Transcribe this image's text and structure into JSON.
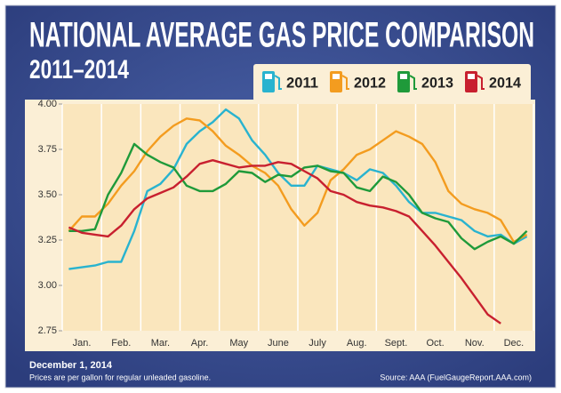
{
  "chart_data": {
    "type": "line",
    "title": "NATIONAL AVERAGE GAS PRICE COMPARISON",
    "subtitle": "2011–2014",
    "date": "December 1, 2014",
    "note": "Prices are per gallon for regular unleaded gasoline.",
    "source": "Source: AAA (FuelGaugeReport.AAA.com)",
    "legend": "top-right",
    "categories": [
      null,
      "Jan.",
      null,
      null,
      "Feb.",
      null,
      null,
      "Mar.",
      null,
      null,
      "Apr.",
      null,
      null,
      "May",
      null,
      null,
      "June",
      null,
      null,
      "July",
      null,
      null,
      "Aug.",
      null,
      null,
      "Sept.",
      null,
      null,
      "Oct.",
      null,
      null,
      "Nov.",
      null,
      null,
      "Dec.",
      null
    ],
    "ylim": [
      2.75,
      4.0
    ],
    "yticks": [
      2.75,
      {
        "value": 3.0,
        "label": "3.00"
      },
      3.25,
      {
        "value": 3.5,
        "label": "3.50"
      },
      3.75,
      {
        "value": 4.0,
        "label": "4.00"
      }
    ],
    "series": [
      {
        "name": "2011",
        "color": "#29b3cf",
        "values": [
          3.09,
          3.1,
          3.11,
          3.13,
          3.13,
          3.3,
          3.52,
          3.56,
          3.64,
          3.78,
          3.85,
          3.9,
          3.97,
          3.92,
          3.8,
          3.72,
          3.62,
          3.55,
          3.55,
          3.66,
          3.64,
          3.62,
          3.58,
          3.64,
          3.62,
          3.55,
          3.46,
          3.4,
          3.4,
          3.38,
          3.36,
          3.3,
          3.27,
          3.28,
          3.23,
          3.27
        ]
      },
      {
        "name": "2012",
        "color": "#f39c1f",
        "values": [
          3.3,
          3.38,
          3.38,
          3.45,
          3.55,
          3.63,
          3.74,
          3.82,
          3.88,
          3.92,
          3.91,
          3.85,
          3.77,
          3.72,
          3.66,
          3.62,
          3.55,
          3.42,
          3.33,
          3.4,
          3.58,
          3.64,
          3.72,
          3.75,
          3.8,
          3.85,
          3.82,
          3.78,
          3.68,
          3.52,
          3.45,
          3.42,
          3.4,
          3.36,
          3.24,
          3.28
        ]
      },
      {
        "name": "2013",
        "color": "#1f9a3a",
        "values": [
          3.3,
          3.3,
          3.31,
          3.5,
          3.62,
          3.78,
          3.72,
          3.68,
          3.65,
          3.55,
          3.52,
          3.52,
          3.56,
          3.63,
          3.62,
          3.57,
          3.61,
          3.6,
          3.65,
          3.66,
          3.63,
          3.62,
          3.54,
          3.52,
          3.6,
          3.57,
          3.5,
          3.4,
          3.37,
          3.35,
          3.26,
          3.2,
          3.24,
          3.27,
          3.23,
          3.3
        ]
      },
      {
        "name": "2014",
        "color": "#c8202f",
        "values": [
          3.32,
          3.29,
          3.28,
          3.27,
          3.33,
          3.42,
          3.48,
          3.51,
          3.54,
          3.6,
          3.67,
          3.69,
          3.67,
          3.65,
          3.66,
          3.66,
          3.68,
          3.67,
          3.63,
          3.59,
          3.52,
          3.5,
          3.46,
          3.44,
          3.43,
          3.41,
          3.38,
          3.3,
          3.22,
          3.13,
          3.04,
          2.94,
          2.84,
          2.79,
          null,
          null
        ]
      }
    ]
  }
}
